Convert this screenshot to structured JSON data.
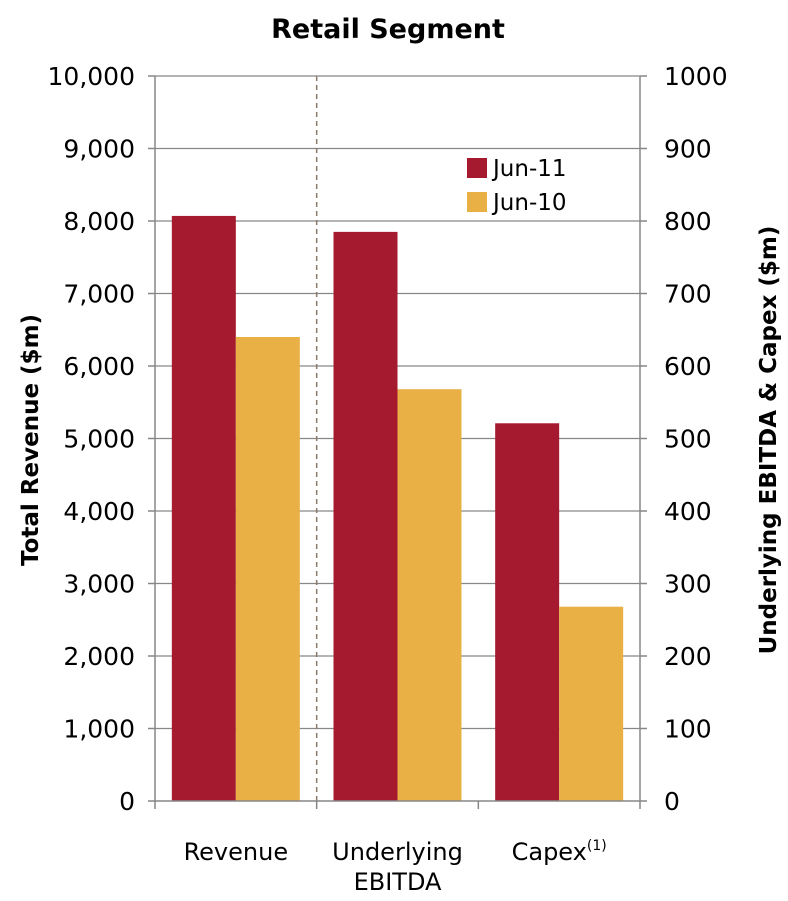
{
  "chart_data": {
    "type": "bar",
    "title": "Retail Segment",
    "categories": [
      "Revenue",
      "Underlying EBITDA",
      "Capex"
    ],
    "category_display": [
      {
        "lines": [
          "Revenue"
        ],
        "superscript": ""
      },
      {
        "lines": [
          "Underlying",
          "EBITDA"
        ],
        "superscript": ""
      },
      {
        "lines": [
          "Capex"
        ],
        "superscript": "(1)"
      }
    ],
    "series": [
      {
        "name": "Jun-11",
        "color": "#A61A30",
        "values": [
          8070,
          785,
          521
        ]
      },
      {
        "name": "Jun-10",
        "color": "#E8B045",
        "values": [
          6400,
          568,
          268
        ]
      }
    ],
    "value_axis": [
      "left",
      "right",
      "right"
    ],
    "ylabel_left": "Total Revenue  ($m)",
    "ylabel_right": "Underlying  EBITDA & Capex  ($m)",
    "ylim_left": [
      0,
      10000
    ],
    "ylim_right": [
      0,
      1000
    ],
    "yticks_left": [
      "0",
      "1,000",
      "2,000",
      "3,000",
      "4,000",
      "5,000",
      "6,000",
      "7,000",
      "8,000",
      "9,000",
      "10,000"
    ],
    "yticks_right": [
      "0",
      "100",
      "200",
      "300",
      "400",
      "500",
      "600",
      "700",
      "800",
      "900",
      "1000"
    ],
    "grid": true,
    "legend": "top-right",
    "separator": "dashed line between Revenue and Underlying EBITDA"
  }
}
